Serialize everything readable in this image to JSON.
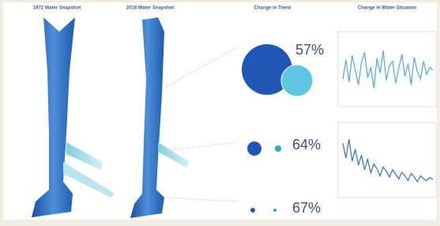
{
  "headers": [
    "1972 Water Snapshot",
    "2018 Water Snapshot",
    "Change in Trend",
    "Change in Water Situation"
  ],
  "trend": [
    {
      "percent": "57%"
    },
    {
      "percent": "64%"
    },
    {
      "percent": "67%"
    }
  ],
  "sparklines": [
    {
      "ylim": [
        0,
        100
      ],
      "color": "#4fa9cf",
      "values": [
        40,
        72,
        35,
        80,
        55,
        30,
        68,
        85,
        42,
        60,
        25,
        75,
        50,
        88,
        38,
        62,
        70,
        33,
        58,
        82,
        45,
        66,
        30,
        77,
        52,
        40,
        70,
        48,
        60,
        55
      ]
    },
    {
      "ylim": [
        0,
        100
      ],
      "color": "#3a6fb0",
      "values": [
        85,
        60,
        92,
        55,
        75,
        48,
        65,
        40,
        58,
        35,
        50,
        42,
        30,
        45,
        38,
        28,
        40,
        33,
        25,
        36,
        30,
        22,
        34,
        28,
        20,
        30,
        25,
        22,
        27,
        24
      ]
    }
  ]
}
